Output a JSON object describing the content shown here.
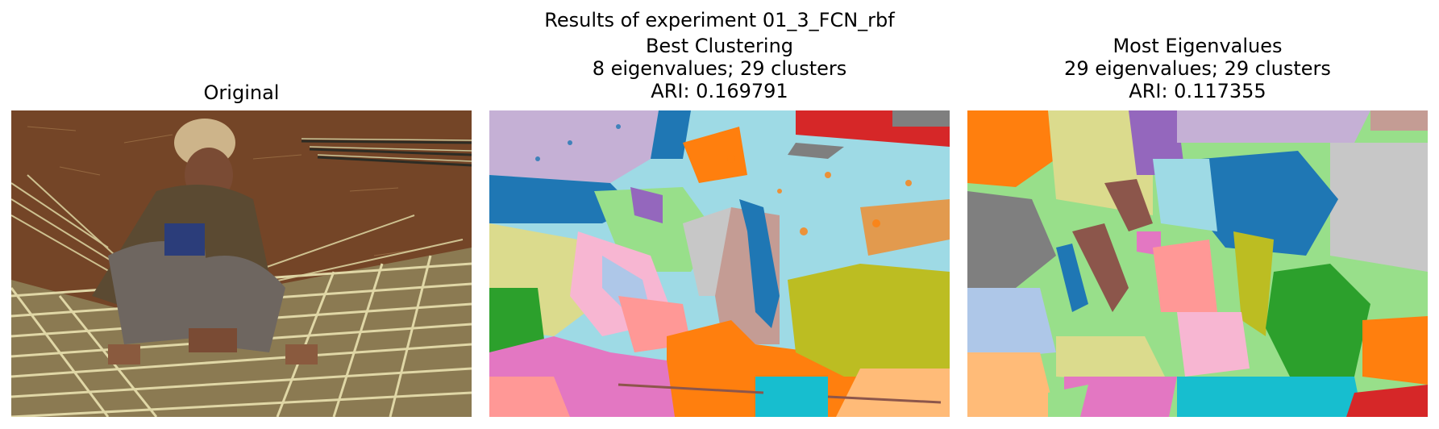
{
  "figure": {
    "suptitle": "Results of experiment 01_3_FCN_rbf"
  },
  "panels": {
    "original": {
      "title": "Original"
    },
    "best": {
      "title_line1": "Best Clustering",
      "title_line2": "8 eigenvalues; 29 clusters",
      "title_line3": "ARI: 0.169791"
    },
    "most": {
      "title_line1": "Most Eigenvalues",
      "title_line2": "29 eigenvalues; 29 clusters",
      "title_line3": "ARI: 0.117355"
    }
  },
  "palette": {
    "blue": "#1f77b4",
    "light_blue": "#aec7e8",
    "orange": "#ff7f0e",
    "light_orange": "#ffbb78",
    "green": "#2ca02c",
    "light_green": "#98df8a",
    "red": "#d62728",
    "pink_red": "#ff9896",
    "purple": "#9467bd",
    "lavender": "#c5b0d5",
    "brown": "#8c564b",
    "tan": "#c49c94",
    "magenta": "#e377c2",
    "light_pink": "#f7b6d2",
    "gray": "#7f7f7f",
    "light_gray": "#c7c7c7",
    "olive": "#bcbd22",
    "khaki": "#dbdb8d",
    "cyan": "#17becf",
    "light_cyan": "#9edae5"
  }
}
